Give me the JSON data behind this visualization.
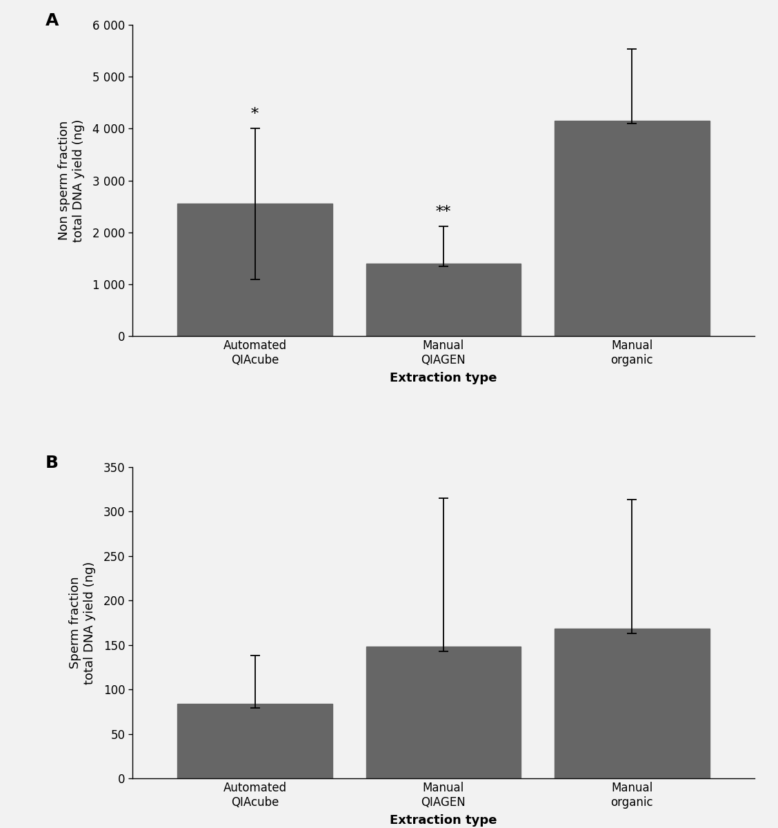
{
  "panel_A": {
    "categories": [
      "Automated\nQIAcube",
      "Manual\nQIAGEN",
      "Manual\norganic"
    ],
    "values": [
      2550,
      1400,
      4150
    ],
    "errors_upper": [
      1450,
      720,
      1380
    ],
    "errors_lower": [
      1450,
      55,
      55
    ],
    "annotations": [
      "*",
      "**",
      ""
    ],
    "ylabel": "Non sperm fraction\ntotal DNA yield (ng)",
    "xlabel": "Extraction type",
    "ylim": [
      0,
      6000
    ],
    "yticks": [
      0,
      1000,
      2000,
      3000,
      4000,
      5000,
      6000
    ],
    "ytick_labels": [
      "0",
      "1 000",
      "2 000",
      "3 000",
      "4 000",
      "5 000",
      "6 000"
    ],
    "panel_label": "A"
  },
  "panel_B": {
    "categories": [
      "Automated\nQIAcube",
      "Manual\nQIAGEN",
      "Manual\norganic"
    ],
    "values": [
      84,
      148,
      168
    ],
    "errors_upper": [
      54,
      167,
      145
    ],
    "errors_lower": [
      5,
      5,
      5
    ],
    "annotations": [
      "",
      "",
      ""
    ],
    "ylabel": "Sperm fraction\ntotal DNA yield (ng)",
    "xlabel": "Extraction type",
    "ylim": [
      0,
      350
    ],
    "yticks": [
      0,
      50,
      100,
      150,
      200,
      250,
      300,
      350
    ],
    "ytick_labels": [
      "0",
      "50",
      "100",
      "150",
      "200",
      "250",
      "300",
      "350"
    ],
    "panel_label": "B"
  },
  "bar_color": "#666666",
  "bar_width": 0.82,
  "background_color": "#f2f2f2",
  "capsize": 5,
  "error_linewidth": 1.3,
  "annotation_fontsize": 16,
  "axis_label_fontsize": 13,
  "tick_fontsize": 12,
  "panel_label_fontsize": 18
}
